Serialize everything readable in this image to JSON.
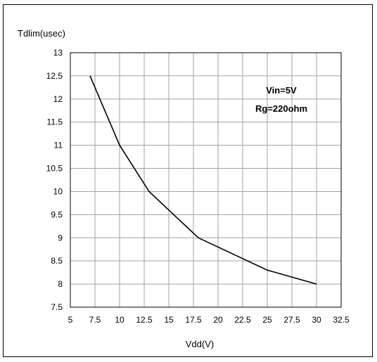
{
  "chart_data": {
    "type": "line",
    "ylabel": "Tdlim(usec)",
    "xlabel": "Vdd(V)",
    "xlim": [
      5,
      32.5
    ],
    "ylim": [
      7.5,
      13
    ],
    "xticks": [
      "5",
      "7.5",
      "10",
      "12.5",
      "15",
      "17.5",
      "20",
      "22.5",
      "25",
      "27.5",
      "30",
      "32.5"
    ],
    "yticks": [
      "7.5",
      "8",
      "8.5",
      "9",
      "9.5",
      "10",
      "10.5",
      "11",
      "11.5",
      "12",
      "12.5",
      "13"
    ],
    "grid": true,
    "annotations": [
      "Vin=5V",
      "Rg=220ohm"
    ],
    "series": [
      {
        "x": [
          7,
          10,
          13,
          18,
          25,
          30
        ],
        "y": [
          12.5,
          11,
          10,
          9,
          8.3,
          8
        ],
        "color": "#000000"
      }
    ]
  }
}
